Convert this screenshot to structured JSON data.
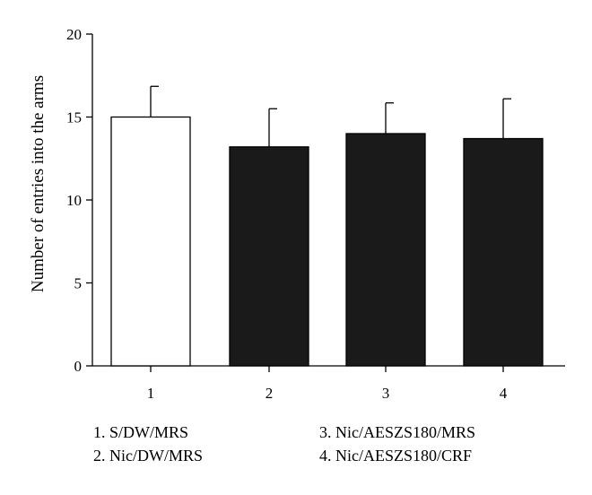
{
  "chart_data": {
    "type": "bar",
    "title": "",
    "xlabel": "",
    "ylabel": "Number of entries into the arms",
    "categories": [
      "1",
      "2",
      "3",
      "4"
    ],
    "values": [
      15.0,
      13.2,
      14.0,
      13.7
    ],
    "errors": [
      1.85,
      2.3,
      1.85,
      2.4
    ],
    "fills": [
      "#ffffff",
      "#1a1a1a",
      "#1a1a1a",
      "#1a1a1a"
    ],
    "ylim": [
      0,
      20
    ],
    "yticks": [
      0,
      5,
      10,
      15,
      20
    ],
    "grid": false,
    "legend_placement": "bottom",
    "legend": [
      [
        "1. S/DW/MRS",
        "3. Nic/AESZS180/MRS"
      ],
      [
        "2. Nic/DW/MRS",
        "4. Nic/AESZS180/CRF"
      ]
    ]
  }
}
